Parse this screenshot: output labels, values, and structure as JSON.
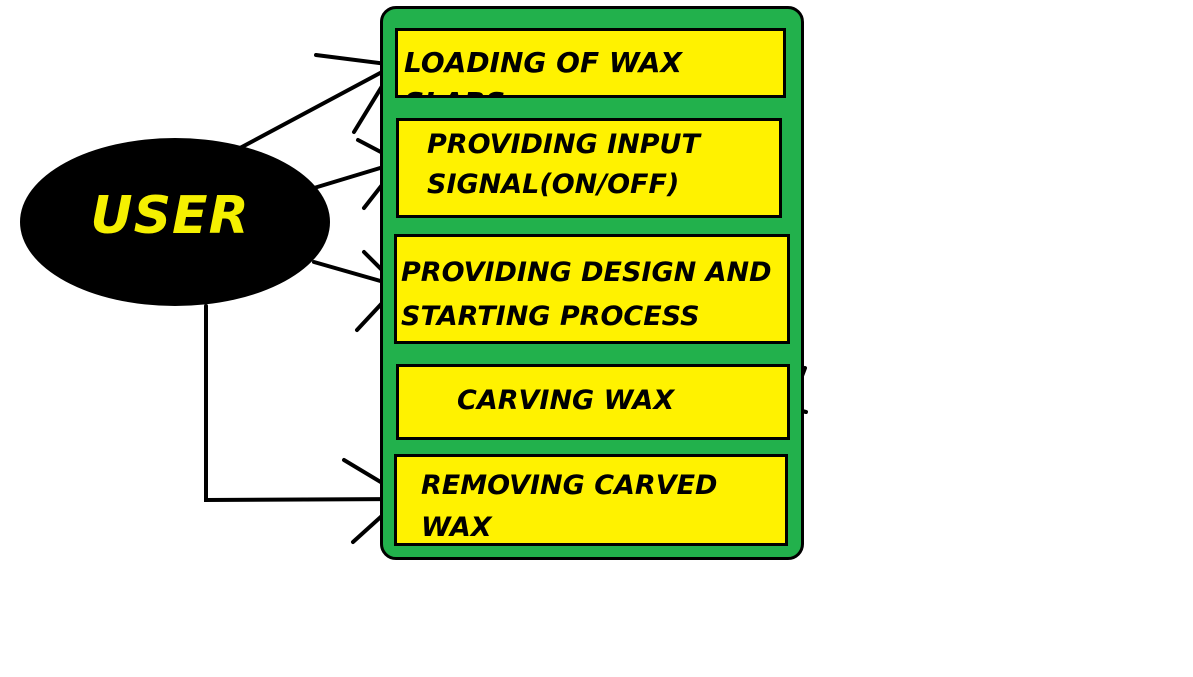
{
  "actor": {
    "label": "USER"
  },
  "steps": [
    {
      "label": "LOADING OF WAX SLABS"
    },
    {
      "label": "PROVIDING INPUT\nSIGNAL(ON/OFF)"
    },
    {
      "label": "PROVIDING DESIGN AND\nSTARTING PROCESS"
    },
    {
      "label": "CARVING WAX"
    },
    {
      "label": "REMOVING CARVED\n        WAX"
    }
  ],
  "colors": {
    "system_fill": "#22b14c",
    "step_fill": "#fff200",
    "actor_fill": "#000000",
    "actor_text": "#f5f000",
    "lines": "#000000"
  }
}
